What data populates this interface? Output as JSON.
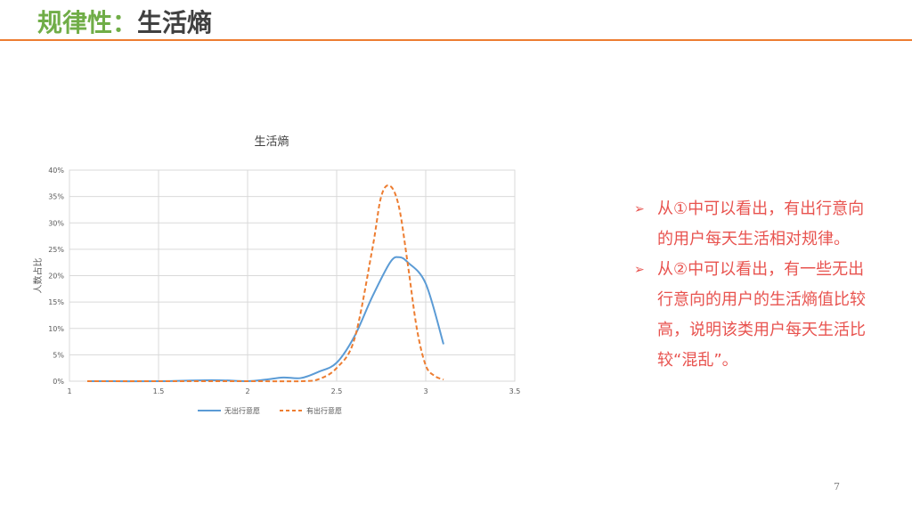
{
  "slide": {
    "title_part1": "规律性：",
    "title_part2": "生活熵",
    "page_number": "7",
    "accent_color": "#ed7d31",
    "title_color": "#70ad47"
  },
  "bullets": [
    {
      "icon": "arrow-bullet-icon",
      "text": "从①中可以看出，有出行意向的用户每天生活相对规律。"
    },
    {
      "icon": "arrow-bullet-icon",
      "text": "从②中可以看出，有一些无出行意向的用户的生活熵值比较高，说明该类用户每天生活比较“混乱”。"
    }
  ],
  "chart_data": {
    "type": "line",
    "title": "生活熵",
    "xlabel": "",
    "ylabel": "人数占比",
    "xlim": [
      1,
      3.5
    ],
    "ylim": [
      0,
      40
    ],
    "xticks": [
      "1",
      "1.5",
      "2",
      "2.5",
      "3",
      "3.5"
    ],
    "yticks": [
      "0%",
      "5%",
      "10%",
      "15%",
      "20%",
      "25%",
      "30%",
      "35%",
      "40%"
    ],
    "grid": true,
    "legend_position": "bottom",
    "series": [
      {
        "name": "无出行意愿",
        "color": "#5b9bd5",
        "style": "solid",
        "x": [
          1.1,
          1.5,
          1.8,
          2.0,
          2.1,
          2.2,
          2.3,
          2.4,
          2.5,
          2.6,
          2.7,
          2.8,
          2.85,
          2.9,
          3.0,
          3.1
        ],
        "y": [
          0,
          0,
          0.2,
          0,
          0.3,
          0.7,
          0.6,
          1.8,
          3.5,
          8.5,
          16,
          22.5,
          23.5,
          22.5,
          18.5,
          7
        ]
      },
      {
        "name": "有出行意愿",
        "color": "#ed7d31",
        "style": "dashed",
        "x": [
          1.1,
          1.5,
          2.0,
          2.3,
          2.4,
          2.5,
          2.6,
          2.7,
          2.75,
          2.8,
          2.85,
          2.9,
          2.95,
          3.0,
          3.05,
          3.1
        ],
        "y": [
          0,
          0,
          0,
          0,
          0.4,
          2.5,
          8,
          25,
          35,
          37,
          33,
          22,
          10,
          3,
          1,
          0.3
        ]
      }
    ]
  }
}
